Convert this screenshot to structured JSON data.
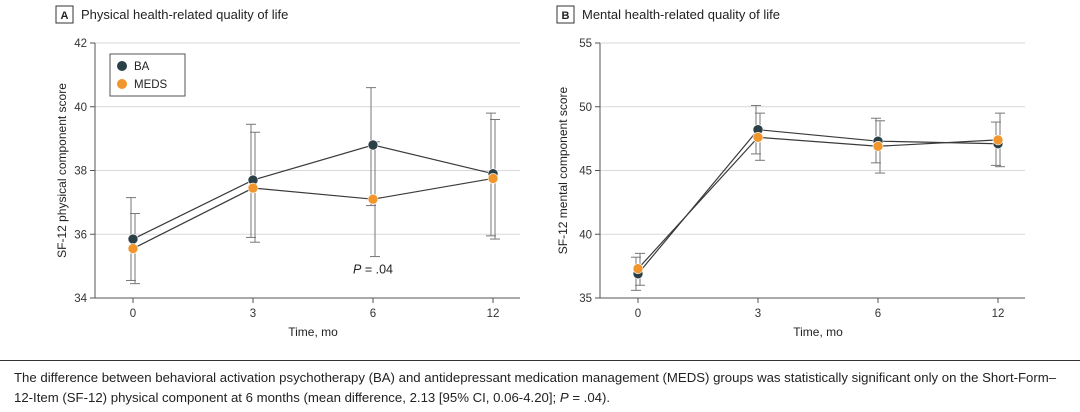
{
  "colors": {
    "BA": "#2b3f46",
    "MEDS": "#f0962d",
    "axis": "#555555",
    "grid": "#d9d9d9"
  },
  "chart_data": [
    {
      "type": "line",
      "panel_letter": "A",
      "title": "Physical health-related quality of life",
      "xlabel": "Time, mo",
      "ylabel": "SF-12 physical component score",
      "x": [
        0,
        3,
        6,
        12
      ],
      "x_tick_labels": [
        "0",
        "3",
        "6",
        "12"
      ],
      "ylim": [
        34,
        42
      ],
      "y_ticks": [
        34,
        36,
        38,
        40,
        42
      ],
      "grid": true,
      "legend": {
        "placement": "top-left",
        "entries": [
          "BA",
          "MEDS"
        ]
      },
      "annotation": {
        "italic": "P",
        "rest": " = .04",
        "at_x": 6,
        "at_y": 34.9
      },
      "series": [
        {
          "name": "BA",
          "values": [
            35.85,
            37.7,
            38.8,
            37.9
          ],
          "err_low": [
            34.55,
            35.9,
            36.9,
            35.95
          ],
          "err_high": [
            37.15,
            39.45,
            40.6,
            39.8
          ]
        },
        {
          "name": "MEDS",
          "values": [
            35.55,
            37.45,
            37.1,
            37.75
          ],
          "err_low": [
            34.45,
            35.75,
            35.3,
            35.85
          ],
          "err_high": [
            36.65,
            39.2,
            38.9,
            39.6
          ]
        }
      ]
    },
    {
      "type": "line",
      "panel_letter": "B",
      "title": "Mental health-related quality of life",
      "xlabel": "Time, mo",
      "ylabel": "SF-12 mental component score",
      "x": [
        0,
        3,
        6,
        12
      ],
      "x_tick_labels": [
        "0",
        "3",
        "6",
        "12"
      ],
      "ylim": [
        35,
        55
      ],
      "y_ticks": [
        35,
        40,
        45,
        50,
        55
      ],
      "grid": true,
      "series": [
        {
          "name": "BA",
          "values": [
            36.9,
            48.2,
            47.3,
            47.1
          ],
          "err_low": [
            35.6,
            46.3,
            45.6,
            45.4
          ],
          "err_high": [
            38.2,
            50.1,
            49.1,
            48.8
          ]
        },
        {
          "name": "MEDS",
          "values": [
            37.3,
            47.6,
            46.9,
            47.4
          ],
          "err_low": [
            36.0,
            45.8,
            44.8,
            45.3
          ],
          "err_high": [
            38.5,
            49.5,
            48.9,
            49.5
          ]
        }
      ]
    }
  ],
  "caption": {
    "part1": "The difference between behavioral activation psychotherapy (BA) and antidepressant medication management (MEDS) groups was statistically significant only on the Short-Form–12-Item (SF-12) physical component at 6 months (mean difference, 2.13 [95% CI, 0.06-4.20]; ",
    "p_italic": "P",
    "part2": " = .04)."
  }
}
